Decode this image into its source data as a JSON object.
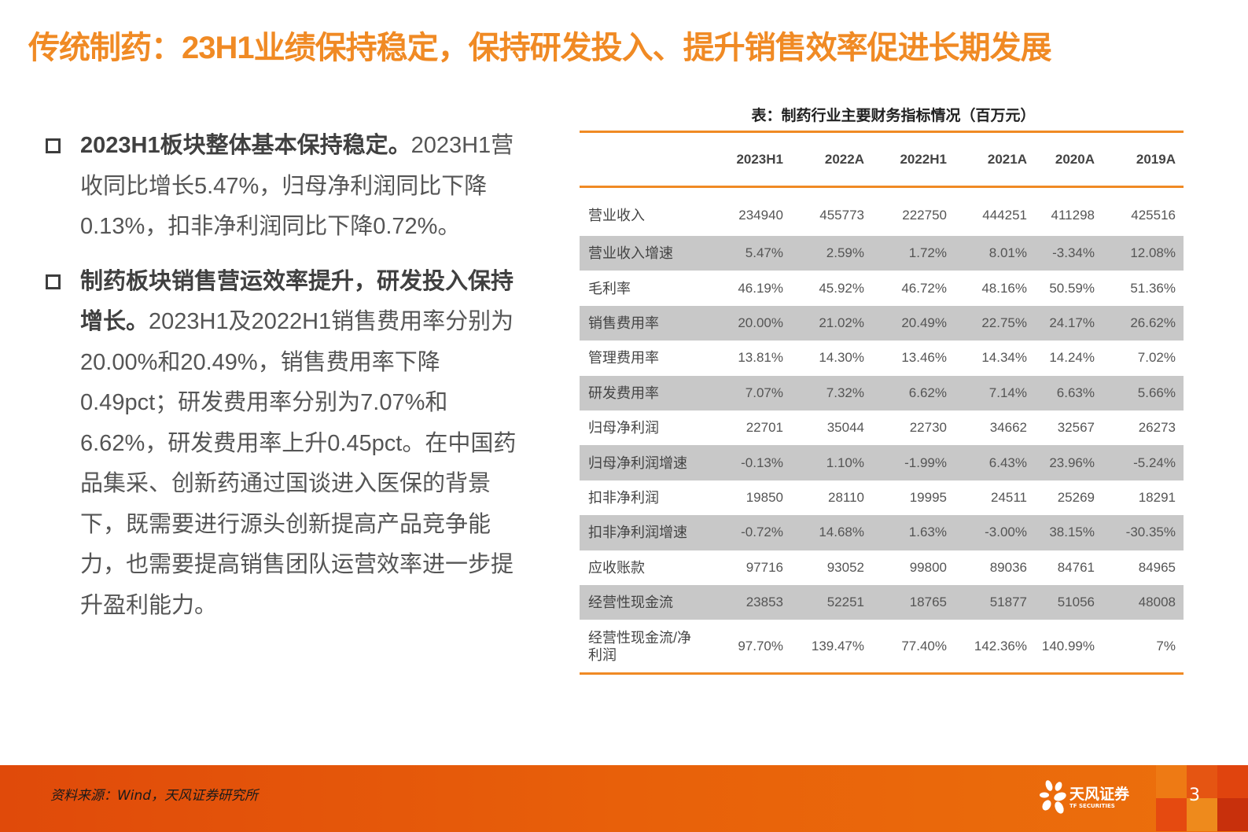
{
  "title": "传统制药：23H1业绩保持稳定，保持研发投入、提升销售效率促进长期发展",
  "bullets": [
    {
      "bold": "2023H1板块整体基本保持稳定。",
      "text": "2023H1营收同比增长5.47%，归母净利润同比下降0.13%，扣非净利润同比下降0.72%。"
    },
    {
      "bold": "制药板块销售营运效率提升，研发投入保持增长。",
      "text": "2023H1及2022H1销售费用率分别为20.00%和20.49%，销售费用率下降0.49pct；研发费用率分别为7.07%和6.62%，研发费用率上升0.45pct。在中国药品集采、创新药通过国谈进入医保的背景下，既需要进行源头创新提高产品竞争能力，也需要提高销售团队运营效率进一步提升盈利能力。"
    }
  ],
  "table": {
    "title": "表：制药行业主要财务指标情况（百万元）",
    "columns": [
      "",
      "2023H1",
      "2022A",
      "2022H1",
      "2021A",
      "2020A",
      "2019A"
    ],
    "rows": [
      {
        "label": "营业收入",
        "values": [
          "234940",
          "455773",
          "222750",
          "444251",
          "411298",
          "425516"
        ]
      },
      {
        "label": "营业收入增速",
        "values": [
          "5.47%",
          "2.59%",
          "1.72%",
          "8.01%",
          "-3.34%",
          "12.08%"
        ]
      },
      {
        "label": "毛利率",
        "values": [
          "46.19%",
          "45.92%",
          "46.72%",
          "48.16%",
          "50.59%",
          "51.36%"
        ]
      },
      {
        "label": "销售费用率",
        "values": [
          "20.00%",
          "21.02%",
          "20.49%",
          "22.75%",
          "24.17%",
          "26.62%"
        ]
      },
      {
        "label": "管理费用率",
        "values": [
          "13.81%",
          "14.30%",
          "13.46%",
          "14.34%",
          "14.24%",
          "7.02%"
        ]
      },
      {
        "label": "研发费用率",
        "values": [
          "7.07%",
          "7.32%",
          "6.62%",
          "7.14%",
          "6.63%",
          "5.66%"
        ]
      },
      {
        "label": "归母净利润",
        "values": [
          "22701",
          "35044",
          "22730",
          "34662",
          "32567",
          "26273"
        ]
      },
      {
        "label": "归母净利润增速",
        "values": [
          "-0.13%",
          "1.10%",
          "-1.99%",
          "6.43%",
          "23.96%",
          "-5.24%"
        ]
      },
      {
        "label": "扣非净利润",
        "values": [
          "19850",
          "28110",
          "19995",
          "24511",
          "25269",
          "18291"
        ]
      },
      {
        "label": "扣非净利润增速",
        "values": [
          "-0.72%",
          "14.68%",
          "1.63%",
          "-3.00%",
          "38.15%",
          "-30.35%"
        ]
      },
      {
        "label": "应收账款",
        "values": [
          "97716",
          "93052",
          "99800",
          "89036",
          "84761",
          "84965"
        ]
      },
      {
        "label": "经营性现金流",
        "values": [
          "23853",
          "52251",
          "18765",
          "51877",
          "51056",
          "48008"
        ]
      },
      {
        "label": "经营性现金流/净利润",
        "values": [
          "97.70%",
          "139.47%",
          "77.40%",
          "142.36%",
          "140.99%",
          "7%"
        ]
      }
    ]
  },
  "footer": {
    "source": "资料来源：Wind，天风证券研究所",
    "logo_text": "天风证券",
    "logo_sub": "TF SECURITIES",
    "page_number": "3"
  },
  "colors": {
    "accent": "#f08a24",
    "row_shade": "#c8c8c8",
    "footer_bg": "#e8600a"
  }
}
